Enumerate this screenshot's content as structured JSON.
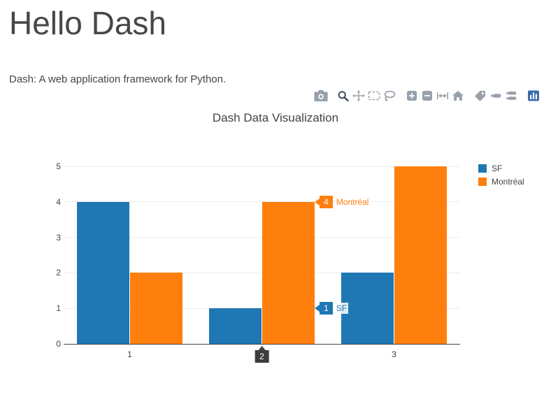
{
  "page": {
    "title": "Hello Dash",
    "subtitle": "Dash: A web application framework for Python."
  },
  "modebar": {
    "active_icon": "zoom-icon",
    "groups": [
      [
        "camera-icon"
      ],
      [
        "zoom-icon",
        "pan-icon",
        "box-select-icon",
        "lasso-select-icon"
      ],
      [
        "zoom-in-icon",
        "zoom-out-icon",
        "autoscale-icon",
        "reset-axes-icon"
      ],
      [
        "toggle-spikelines-icon",
        "hover-closest-icon",
        "hover-compare-icon"
      ],
      [
        "plotly-logo-icon"
      ]
    ]
  },
  "chart_data": {
    "type": "bar",
    "barmode": "group",
    "title": "Dash Data Visualization",
    "categories": [
      "1",
      "2",
      "3"
    ],
    "series": [
      {
        "name": "SF",
        "color": "#1f77b4",
        "values": [
          4,
          1,
          2
        ]
      },
      {
        "name": "Montréal",
        "color": "#ff7f0e",
        "values": [
          2,
          4,
          5
        ]
      }
    ],
    "xlabel": "",
    "ylabel": "",
    "ylim": [
      0,
      5
    ],
    "yticks": [
      0,
      1,
      2,
      3,
      4,
      5
    ],
    "grid": true,
    "legend_position": "right",
    "hover": {
      "category_index": 1,
      "category_label": "2",
      "axis_tooltip_color": "#3d3d3d",
      "labels": [
        {
          "series": "Montréal",
          "value": 4
        },
        {
          "series": "SF",
          "value": 1
        }
      ]
    }
  }
}
